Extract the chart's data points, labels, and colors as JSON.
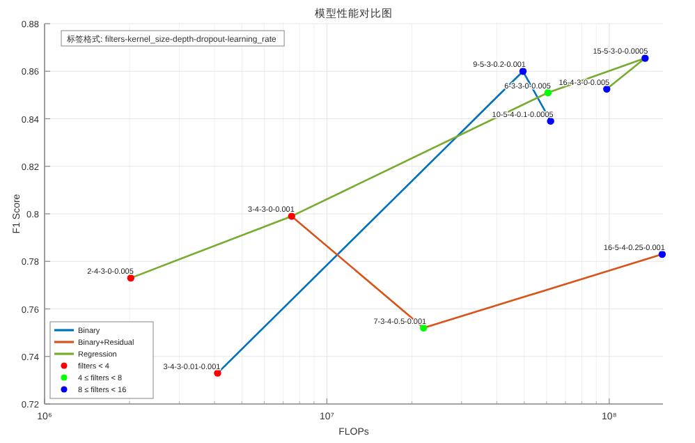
{
  "chart_data": {
    "type": "line",
    "title": "模型性能对比图",
    "xlabel": "FLOPs",
    "ylabel": "F1 Score",
    "log": "x",
    "xlim": [
      1000000,
      155000000
    ],
    "xticks": [
      {
        "value": 1000000,
        "label": "10⁶"
      },
      {
        "value": 10000000,
        "label": "10⁷"
      },
      {
        "value": 100000000,
        "label": "10⁸"
      }
    ],
    "ylim": [
      0.72,
      0.88
    ],
    "yticks": [
      0.72,
      0.74,
      0.76,
      0.78,
      0.8,
      0.82,
      0.84,
      0.86,
      0.88
    ],
    "grid": true,
    "legend": "bottom left",
    "series": [
      {
        "name": "Binary",
        "color": "#0072bd",
        "marker": "none",
        "x": [
          4100000,
          49500000,
          62000000
        ],
        "values": [
          0.733,
          0.86,
          0.839
        ]
      },
      {
        "name": "Binary+Residual",
        "color": "#d95319",
        "marker": "none",
        "x": [
          7500000,
          22000000,
          154000000
        ],
        "values": [
          0.799,
          0.752,
          0.783
        ]
      },
      {
        "name": "Regression",
        "color": "#77ac30",
        "marker": "none",
        "x": [
          2020000,
          7500000,
          60700000,
          134000000,
          98000000
        ],
        "values": [
          0.773,
          0.799,
          0.851,
          0.8655,
          0.8525
        ]
      },
      {
        "name": "filters < 4",
        "type": "scatter",
        "color": "#ff0000",
        "marker": "circle",
        "x": [
          2020000,
          7500000,
          4100000
        ],
        "values": [
          0.773,
          0.799,
          0.733
        ]
      },
      {
        "name": "4 ≤ filters < 8",
        "type": "scatter",
        "color": "#00ff00",
        "marker": "circle",
        "x": [
          22000000,
          60700000
        ],
        "values": [
          0.752,
          0.851
        ]
      },
      {
        "name": "8 ≤ filters < 16",
        "type": "scatter",
        "color": "#0000ff",
        "marker": "circle",
        "x": [
          49500000,
          62000000,
          98000000,
          134000000,
          154000000
        ],
        "values": [
          0.86,
          0.839,
          0.8525,
          0.8655,
          0.783
        ]
      }
    ],
    "annotations": [
      "标签格式: filters-kernel_size-depth-dropout-learning_rate",
      {
        "text": "2-4-3-0-0.005",
        "x": 2020000,
        "y": 0.773
      },
      {
        "text": "3-4-3-0-0.001",
        "x": 7500000,
        "y": 0.799
      },
      {
        "text": "3-4-3-0.01-0.001",
        "x": 4100000,
        "y": 0.733
      },
      {
        "text": "7-3-4-0.5-0.001",
        "x": 22000000,
        "y": 0.752
      },
      {
        "text": "6-3-3-0-0.005",
        "x": 60700000,
        "y": 0.851
      },
      {
        "text": "9-5-3-0.2-0.001",
        "x": 49500000,
        "y": 0.86
      },
      {
        "text": "10-5-4-0.1-0.0005",
        "x": 62000000,
        "y": 0.839
      },
      {
        "text": "16-4-3-0-0.005",
        "x": 98000000,
        "y": 0.8525
      },
      {
        "text": "15-5-3-0-0.0005",
        "x": 134000000,
        "y": 0.8655
      },
      {
        "text": "16-5-4-0.25-0.001",
        "x": 154000000,
        "y": 0.783
      }
    ]
  }
}
